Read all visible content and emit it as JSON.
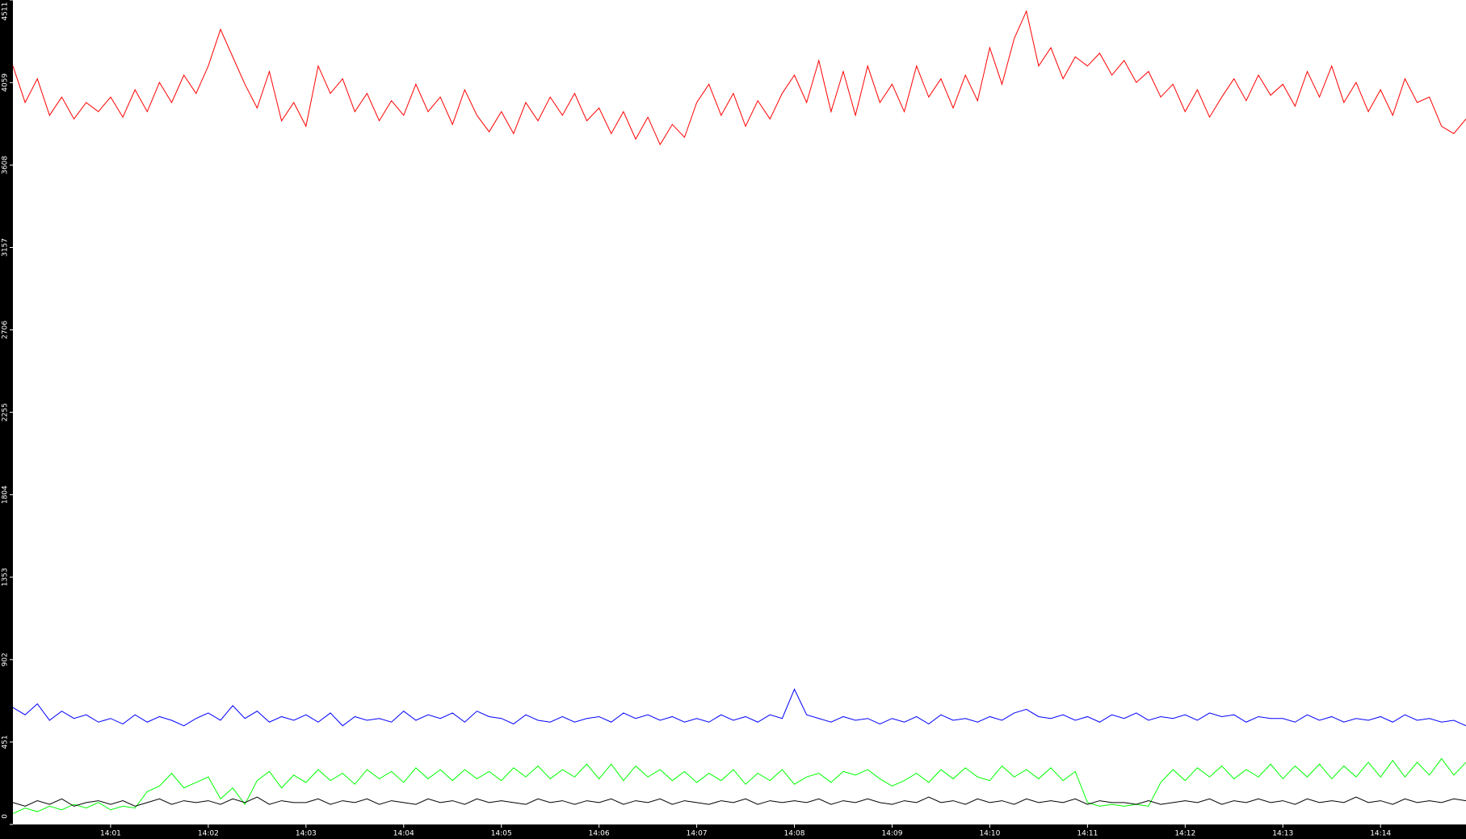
{
  "chart_data": {
    "type": "line",
    "categories": [
      null,
      null,
      null,
      null,
      null,
      null,
      null,
      null,
      "14:01",
      null,
      null,
      null,
      null,
      null,
      null,
      null,
      "14:02",
      null,
      null,
      null,
      null,
      null,
      null,
      null,
      "14:03",
      null,
      null,
      null,
      null,
      null,
      null,
      null,
      "14:04",
      null,
      null,
      null,
      null,
      null,
      null,
      null,
      "14:05",
      null,
      null,
      null,
      null,
      null,
      null,
      null,
      "14:06",
      null,
      null,
      null,
      null,
      null,
      null,
      null,
      "14:07",
      null,
      null,
      null,
      null,
      null,
      null,
      null,
      "14:08",
      null,
      null,
      null,
      null,
      null,
      null,
      null,
      "14:09",
      null,
      null,
      null,
      null,
      null,
      null,
      null,
      "14:10",
      null,
      null,
      null,
      null,
      null,
      null,
      null,
      "14:11",
      null,
      null,
      null,
      null,
      null,
      null,
      null,
      "14:12",
      null,
      null,
      null,
      null,
      null,
      null,
      null,
      "14:13",
      null,
      null,
      null,
      null,
      null,
      null,
      null,
      "14:14",
      null,
      null,
      null,
      null,
      null,
      null,
      null
    ],
    "series": [
      {
        "color": "#ff0000",
        "values": [
          4150,
          3950,
          4080,
          3880,
          3980,
          3860,
          3950,
          3900,
          3980,
          3870,
          4020,
          3900,
          4060,
          3950,
          4100,
          4000,
          4150,
          4350,
          4200,
          4050,
          3920,
          4120,
          3850,
          3950,
          3820,
          4150,
          4000,
          4080,
          3900,
          4000,
          3850,
          3960,
          3880,
          4050,
          3900,
          3980,
          3830,
          4020,
          3880,
          3790,
          3900,
          3780,
          3950,
          3850,
          3980,
          3880,
          4000,
          3850,
          3920,
          3780,
          3900,
          3750,
          3870,
          3720,
          3830,
          3760,
          3950,
          4050,
          3880,
          4000,
          3820,
          3960,
          3860,
          4000,
          4100,
          3950,
          4180,
          3900,
          4120,
          3880,
          4150,
          3950,
          4050,
          3900,
          4150,
          3980,
          4080,
          3920,
          4100,
          3960,
          4250,
          4050,
          4300,
          4450,
          4150,
          4250,
          4080,
          4200,
          4150,
          4220,
          4100,
          4180,
          4060,
          4120,
          3980,
          4050,
          3900,
          4020,
          3870,
          3980,
          4080,
          3960,
          4100,
          3990,
          4050,
          3930,
          4120,
          3980,
          4150,
          3950,
          4060,
          3900,
          4020,
          3880,
          4080,
          3950,
          3980,
          3820,
          3780,
          3860
        ]
      },
      {
        "color": "#0000ff",
        "values": [
          640,
          600,
          660,
          570,
          620,
          580,
          600,
          560,
          580,
          550,
          600,
          560,
          590,
          570,
          540,
          580,
          610,
          570,
          650,
          580,
          620,
          560,
          590,
          570,
          600,
          560,
          610,
          540,
          590,
          570,
          580,
          560,
          620,
          570,
          600,
          580,
          610,
          560,
          620,
          590,
          580,
          550,
          600,
          570,
          560,
          590,
          560,
          580,
          590,
          560,
          610,
          580,
          600,
          570,
          590,
          560,
          580,
          560,
          600,
          570,
          590,
          560,
          600,
          580,
          740,
          600,
          580,
          560,
          590,
          570,
          580,
          550,
          580,
          560,
          590,
          550,
          600,
          570,
          580,
          560,
          590,
          570,
          610,
          630,
          590,
          580,
          600,
          570,
          590,
          560,
          600,
          580,
          610,
          570,
          590,
          580,
          600,
          570,
          610,
          590,
          600,
          560,
          590,
          580,
          580,
          560,
          600,
          570,
          590,
          560,
          580,
          570,
          590,
          560,
          600,
          570,
          580,
          560,
          570,
          540
        ]
      },
      {
        "color": "#00ff00",
        "values": [
          60,
          90,
          70,
          100,
          80,
          110,
          90,
          120,
          80,
          100,
          90,
          180,
          210,
          280,
          200,
          230,
          260,
          140,
          200,
          110,
          240,
          290,
          200,
          270,
          230,
          300,
          240,
          280,
          220,
          300,
          250,
          290,
          230,
          310,
          250,
          300,
          240,
          300,
          250,
          290,
          240,
          310,
          260,
          320,
          250,
          300,
          260,
          330,
          250,
          330,
          240,
          320,
          260,
          300,
          240,
          290,
          230,
          280,
          240,
          300,
          220,
          280,
          240,
          300,
          220,
          260,
          280,
          230,
          290,
          270,
          300,
          250,
          210,
          240,
          280,
          230,
          300,
          250,
          310,
          260,
          240,
          320,
          260,
          300,
          250,
          310,
          240,
          290,
          120,
          100,
          110,
          100,
          110,
          100,
          230,
          300,
          240,
          310,
          260,
          320,
          250,
          300,
          260,
          330,
          250,
          320,
          260,
          330,
          250,
          320,
          260,
          340,
          260,
          350,
          260,
          340,
          270,
          360,
          270,
          340
        ]
      },
      {
        "color": "#000000",
        "values": [
          120,
          100,
          130,
          110,
          140,
          100,
          120,
          130,
          110,
          130,
          100,
          120,
          140,
          110,
          130,
          120,
          130,
          110,
          140,
          120,
          150,
          110,
          130,
          120,
          120,
          140,
          110,
          130,
          120,
          140,
          110,
          130,
          120,
          110,
          140,
          120,
          130,
          110,
          140,
          120,
          130,
          120,
          110,
          140,
          120,
          130,
          110,
          130,
          120,
          140,
          110,
          130,
          120,
          140,
          110,
          130,
          120,
          110,
          130,
          120,
          140,
          110,
          130,
          120,
          130,
          120,
          140,
          110,
          130,
          120,
          140,
          120,
          110,
          130,
          120,
          150,
          120,
          130,
          110,
          140,
          120,
          130,
          110,
          140,
          120,
          130,
          120,
          140,
          110,
          130,
          120,
          120,
          110,
          130,
          110,
          120,
          130,
          120,
          140,
          110,
          130,
          120,
          140,
          120,
          130,
          110,
          140,
          120,
          130,
          120,
          150,
          120,
          130,
          110,
          140,
          120,
          130,
          120,
          140,
          130
        ]
      }
    ],
    "ylim": [
      0,
      4511
    ],
    "yticks": [
      0,
      451,
      902,
      1353,
      1804,
      2255,
      2706,
      3157,
      3608,
      4059,
      4511
    ]
  }
}
